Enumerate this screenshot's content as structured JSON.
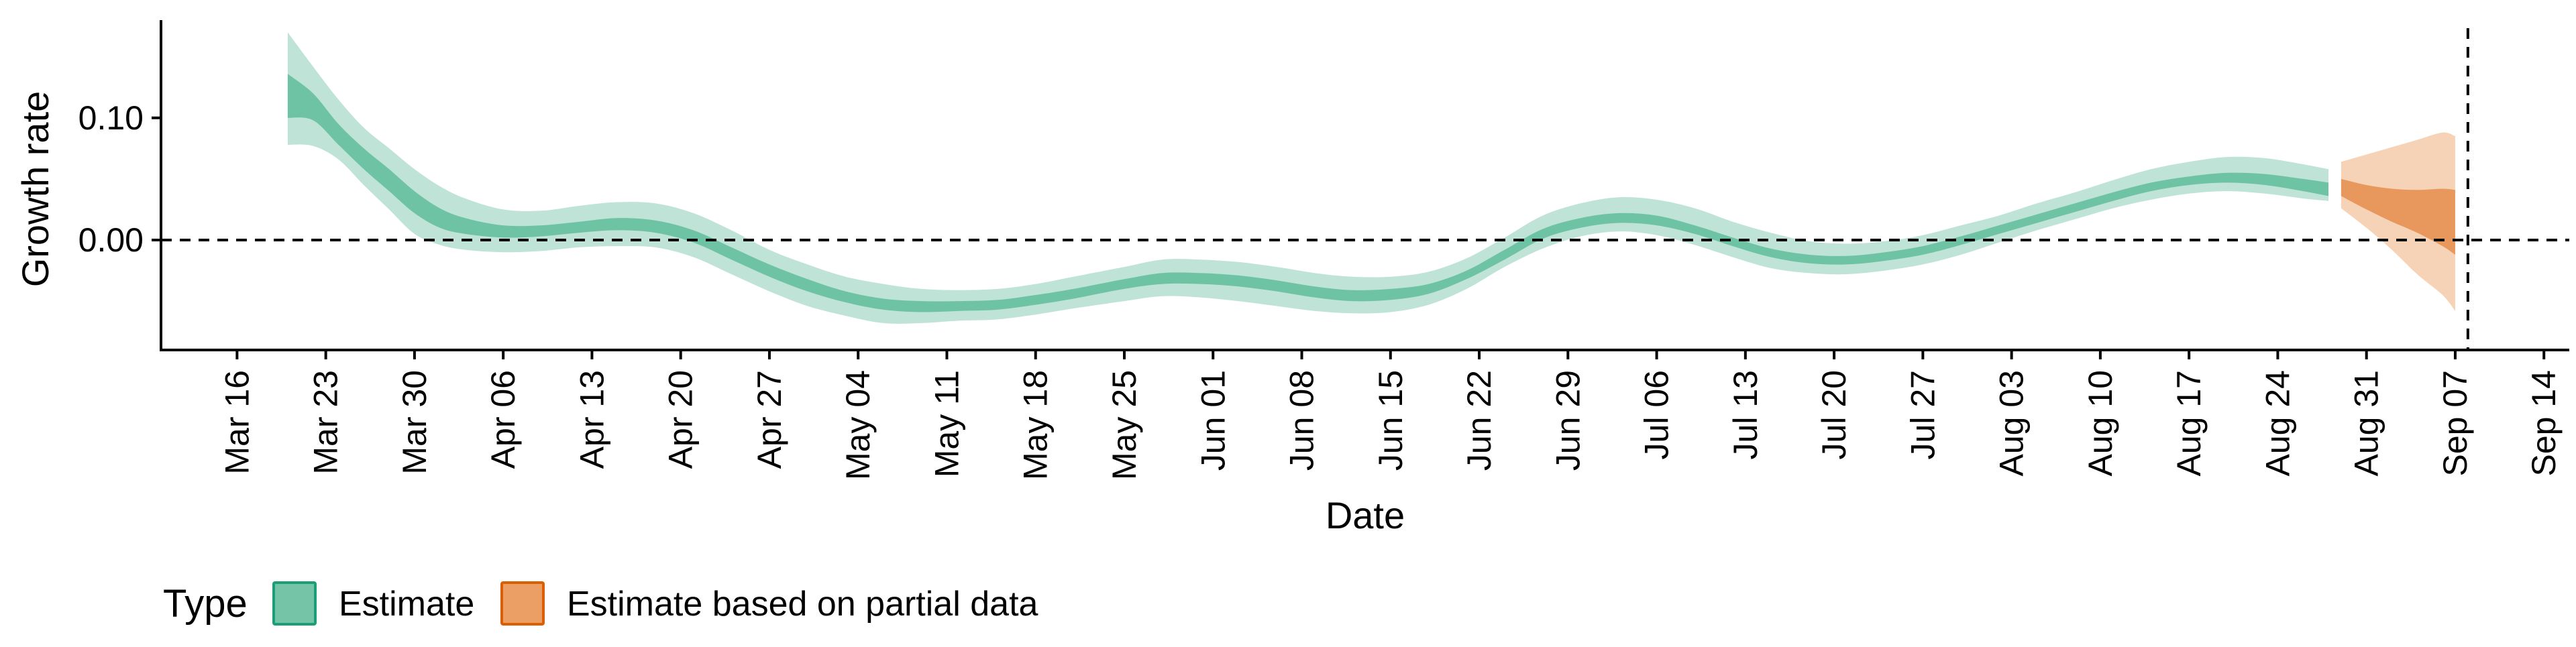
{
  "chart_data": {
    "type": "area",
    "title": "",
    "xlabel": "Date",
    "ylabel": "Growth rate",
    "x_type": "date",
    "xlim": [
      "2020-03-10",
      "2020-09-16"
    ],
    "ylim": [
      -0.09,
      0.18
    ],
    "x_ticks": [
      {
        "date": "2020-03-16",
        "label": "Mar 16"
      },
      {
        "date": "2020-03-23",
        "label": "Mar 23"
      },
      {
        "date": "2020-03-30",
        "label": "Mar 30"
      },
      {
        "date": "2020-04-06",
        "label": "Apr 06"
      },
      {
        "date": "2020-04-13",
        "label": "Apr 13"
      },
      {
        "date": "2020-04-20",
        "label": "Apr 20"
      },
      {
        "date": "2020-04-27",
        "label": "Apr 27"
      },
      {
        "date": "2020-05-04",
        "label": "May 04"
      },
      {
        "date": "2020-05-11",
        "label": "May 11"
      },
      {
        "date": "2020-05-18",
        "label": "May 18"
      },
      {
        "date": "2020-05-25",
        "label": "May 25"
      },
      {
        "date": "2020-06-01",
        "label": "Jun 01"
      },
      {
        "date": "2020-06-08",
        "label": "Jun 08"
      },
      {
        "date": "2020-06-15",
        "label": "Jun 15"
      },
      {
        "date": "2020-06-22",
        "label": "Jun 22"
      },
      {
        "date": "2020-06-29",
        "label": "Jun 29"
      },
      {
        "date": "2020-07-06",
        "label": "Jul 06"
      },
      {
        "date": "2020-07-13",
        "label": "Jul 13"
      },
      {
        "date": "2020-07-20",
        "label": "Jul 20"
      },
      {
        "date": "2020-07-27",
        "label": "Jul 27"
      },
      {
        "date": "2020-08-03",
        "label": "Aug 03"
      },
      {
        "date": "2020-08-10",
        "label": "Aug 10"
      },
      {
        "date": "2020-08-17",
        "label": "Aug 17"
      },
      {
        "date": "2020-08-24",
        "label": "Aug 24"
      },
      {
        "date": "2020-08-31",
        "label": "Aug 31"
      },
      {
        "date": "2020-09-07",
        "label": "Sep 07"
      },
      {
        "date": "2020-09-14",
        "label": "Sep 14"
      }
    ],
    "y_ticks": [
      {
        "value": 0.1,
        "label": "0.10"
      },
      {
        "value": 0.0,
        "label": "0.00"
      }
    ],
    "reference_lines": [
      {
        "axis": "y",
        "value": 0.0,
        "style": "dashed"
      },
      {
        "axis": "x",
        "value": "2020-09-08",
        "style": "dashed"
      }
    ],
    "grid": false,
    "legend_position": "bottom-left",
    "legend": {
      "title": "Type",
      "items": [
        {
          "label": "Estimate",
          "color": "#1b9e77"
        },
        {
          "label": "Estimate based on partial data",
          "color": "#d95f02"
        }
      ]
    },
    "colors": {
      "estimate_outer": "#bfe3d6",
      "estimate_inner": "#6fc3a5",
      "partial_outer": "#f6d2b6",
      "partial_inner": "#e8985d",
      "legend_estimate_fill": "#76c4a8",
      "legend_estimate_border": "#1b9e77",
      "legend_partial_fill": "#ec9f65",
      "legend_partial_border": "#d95f02"
    },
    "series": [
      {
        "name": "Estimate",
        "band": "outer",
        "x": [
          "2020-03-20",
          "2020-03-22",
          "2020-03-24",
          "2020-03-26",
          "2020-03-28",
          "2020-03-30",
          "2020-04-01",
          "2020-04-03",
          "2020-04-06",
          "2020-04-09",
          "2020-04-12",
          "2020-04-15",
          "2020-04-18",
          "2020-04-21",
          "2020-04-24",
          "2020-04-27",
          "2020-04-30",
          "2020-05-03",
          "2020-05-06",
          "2020-05-09",
          "2020-05-12",
          "2020-05-15",
          "2020-05-18",
          "2020-05-21",
          "2020-05-25",
          "2020-05-28",
          "2020-05-31",
          "2020-06-03",
          "2020-06-06",
          "2020-06-09",
          "2020-06-12",
          "2020-06-15",
          "2020-06-18",
          "2020-06-21",
          "2020-06-24",
          "2020-06-27",
          "2020-06-30",
          "2020-07-03",
          "2020-07-06",
          "2020-07-09",
          "2020-07-12",
          "2020-07-15",
          "2020-07-18",
          "2020-07-21",
          "2020-07-24",
          "2020-07-27",
          "2020-07-30",
          "2020-08-02",
          "2020-08-05",
          "2020-08-08",
          "2020-08-11",
          "2020-08-14",
          "2020-08-17",
          "2020-08-20",
          "2020-08-23",
          "2020-08-26",
          "2020-08-28"
        ],
        "upper": [
          0.17,
          0.142,
          0.115,
          0.092,
          0.075,
          0.058,
          0.044,
          0.034,
          0.025,
          0.024,
          0.028,
          0.031,
          0.03,
          0.022,
          0.008,
          -0.008,
          -0.02,
          -0.03,
          -0.036,
          -0.04,
          -0.041,
          -0.04,
          -0.036,
          -0.03,
          -0.022,
          -0.016,
          -0.016,
          -0.018,
          -0.022,
          -0.027,
          -0.03,
          -0.03,
          -0.026,
          -0.015,
          0.002,
          0.02,
          0.03,
          0.035,
          0.033,
          0.026,
          0.015,
          0.006,
          -0.001,
          -0.003,
          -0.001,
          0.004,
          0.012,
          0.02,
          0.03,
          0.039,
          0.049,
          0.058,
          0.064,
          0.068,
          0.067,
          0.062,
          0.058
        ],
        "lower": [
          0.078,
          0.077,
          0.066,
          0.045,
          0.025,
          0.005,
          -0.004,
          -0.008,
          -0.01,
          -0.009,
          -0.006,
          -0.005,
          -0.006,
          -0.014,
          -0.028,
          -0.042,
          -0.054,
          -0.062,
          -0.068,
          -0.068,
          -0.066,
          -0.065,
          -0.061,
          -0.056,
          -0.05,
          -0.046,
          -0.047,
          -0.05,
          -0.054,
          -0.058,
          -0.06,
          -0.059,
          -0.053,
          -0.04,
          -0.022,
          -0.007,
          0.003,
          0.007,
          0.004,
          -0.004,
          -0.014,
          -0.023,
          -0.027,
          -0.028,
          -0.025,
          -0.02,
          -0.012,
          -0.002,
          0.008,
          0.017,
          0.026,
          0.033,
          0.038,
          0.04,
          0.038,
          0.034,
          0.032
        ]
      },
      {
        "name": "Estimate",
        "band": "inner",
        "x": [
          "2020-03-20",
          "2020-03-22",
          "2020-03-24",
          "2020-03-26",
          "2020-03-28",
          "2020-03-30",
          "2020-04-01",
          "2020-04-03",
          "2020-04-06",
          "2020-04-09",
          "2020-04-12",
          "2020-04-15",
          "2020-04-18",
          "2020-04-21",
          "2020-04-24",
          "2020-04-27",
          "2020-04-30",
          "2020-05-03",
          "2020-05-06",
          "2020-05-09",
          "2020-05-12",
          "2020-05-15",
          "2020-05-18",
          "2020-05-21",
          "2020-05-25",
          "2020-05-28",
          "2020-05-31",
          "2020-06-03",
          "2020-06-06",
          "2020-06-09",
          "2020-06-12",
          "2020-06-15",
          "2020-06-18",
          "2020-06-21",
          "2020-06-24",
          "2020-06-27",
          "2020-06-30",
          "2020-07-03",
          "2020-07-06",
          "2020-07-09",
          "2020-07-12",
          "2020-07-15",
          "2020-07-18",
          "2020-07-21",
          "2020-07-24",
          "2020-07-27",
          "2020-07-30",
          "2020-08-02",
          "2020-08-05",
          "2020-08-08",
          "2020-08-11",
          "2020-08-14",
          "2020-08-17",
          "2020-08-20",
          "2020-08-23",
          "2020-08-26",
          "2020-08-28"
        ],
        "upper": [
          0.136,
          0.12,
          0.095,
          0.075,
          0.058,
          0.04,
          0.026,
          0.018,
          0.012,
          0.012,
          0.015,
          0.018,
          0.016,
          0.008,
          -0.006,
          -0.02,
          -0.032,
          -0.042,
          -0.048,
          -0.05,
          -0.05,
          -0.049,
          -0.045,
          -0.04,
          -0.032,
          -0.027,
          -0.027,
          -0.029,
          -0.033,
          -0.038,
          -0.041,
          -0.04,
          -0.036,
          -0.025,
          -0.008,
          0.009,
          0.018,
          0.022,
          0.02,
          0.012,
          0.002,
          -0.007,
          -0.012,
          -0.013,
          -0.01,
          -0.005,
          0.003,
          0.012,
          0.021,
          0.03,
          0.039,
          0.047,
          0.052,
          0.055,
          0.054,
          0.05,
          0.047
        ],
        "lower": [
          0.1,
          0.098,
          0.078,
          0.058,
          0.04,
          0.022,
          0.01,
          0.005,
          0.002,
          0.003,
          0.006,
          0.008,
          0.006,
          -0.002,
          -0.016,
          -0.03,
          -0.042,
          -0.051,
          -0.057,
          -0.059,
          -0.058,
          -0.057,
          -0.053,
          -0.048,
          -0.04,
          -0.036,
          -0.036,
          -0.038,
          -0.042,
          -0.047,
          -0.05,
          -0.049,
          -0.044,
          -0.032,
          -0.016,
          0.001,
          0.01,
          0.014,
          0.012,
          0.005,
          -0.005,
          -0.014,
          -0.019,
          -0.02,
          -0.017,
          -0.012,
          -0.004,
          0.005,
          0.014,
          0.023,
          0.032,
          0.04,
          0.045,
          0.047,
          0.045,
          0.04,
          0.036
        ]
      },
      {
        "name": "Estimate based on partial data",
        "band": "outer",
        "x": [
          "2020-08-29",
          "2020-08-31",
          "2020-09-02",
          "2020-09-04",
          "2020-09-06",
          "2020-09-07"
        ],
        "upper": [
          0.064,
          0.07,
          0.076,
          0.082,
          0.088,
          0.085
        ],
        "lower": [
          0.026,
          0.01,
          -0.008,
          -0.028,
          -0.045,
          -0.058
        ]
      },
      {
        "name": "Estimate based on partial data",
        "band": "inner",
        "x": [
          "2020-08-29",
          "2020-08-31",
          "2020-09-02",
          "2020-09-04",
          "2020-09-06",
          "2020-09-07"
        ],
        "upper": [
          0.05,
          0.045,
          0.042,
          0.041,
          0.042,
          0.041
        ],
        "lower": [
          0.036,
          0.025,
          0.015,
          0.006,
          -0.005,
          -0.012
        ]
      }
    ]
  }
}
